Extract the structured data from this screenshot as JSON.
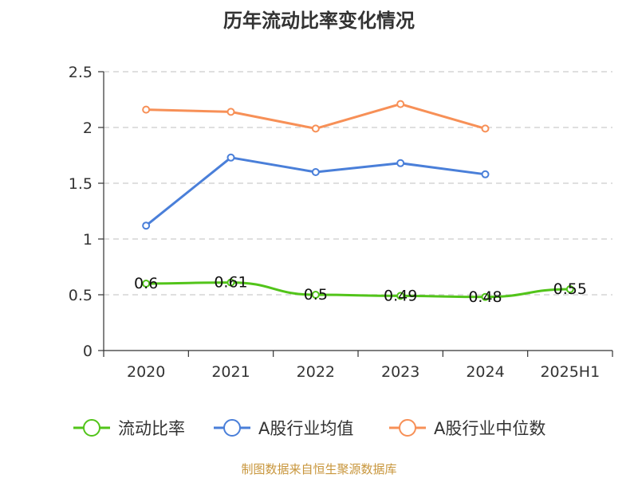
{
  "title": "历年流动比率变化情况",
  "source": "制图数据来自恒生聚源数据库",
  "chart_data": {
    "type": "line",
    "categories": [
      "2020",
      "2021",
      "2022",
      "2023",
      "2024",
      "2025H1"
    ],
    "y_ticks": [
      "0",
      "0.5",
      "1",
      "1.5",
      "2",
      "2.5"
    ],
    "ylim": [
      0,
      2.5
    ],
    "grid": true,
    "legend_position": "bottom",
    "series": [
      {
        "name": "流动比率",
        "color": "#52c41a",
        "values": [
          0.6,
          0.61,
          0.5,
          0.49,
          0.48,
          0.55
        ],
        "labels": [
          "0.6",
          "0.61",
          "0.5",
          "0.49",
          "0.48",
          "0.55"
        ]
      },
      {
        "name": "A股行业均值",
        "color": "#4a7fd9",
        "values": [
          1.12,
          1.73,
          1.6,
          1.68,
          1.58,
          null
        ]
      },
      {
        "name": "A股行业中位数",
        "color": "#f79057",
        "values": [
          2.16,
          2.14,
          1.99,
          2.21,
          1.99,
          null
        ]
      }
    ]
  }
}
